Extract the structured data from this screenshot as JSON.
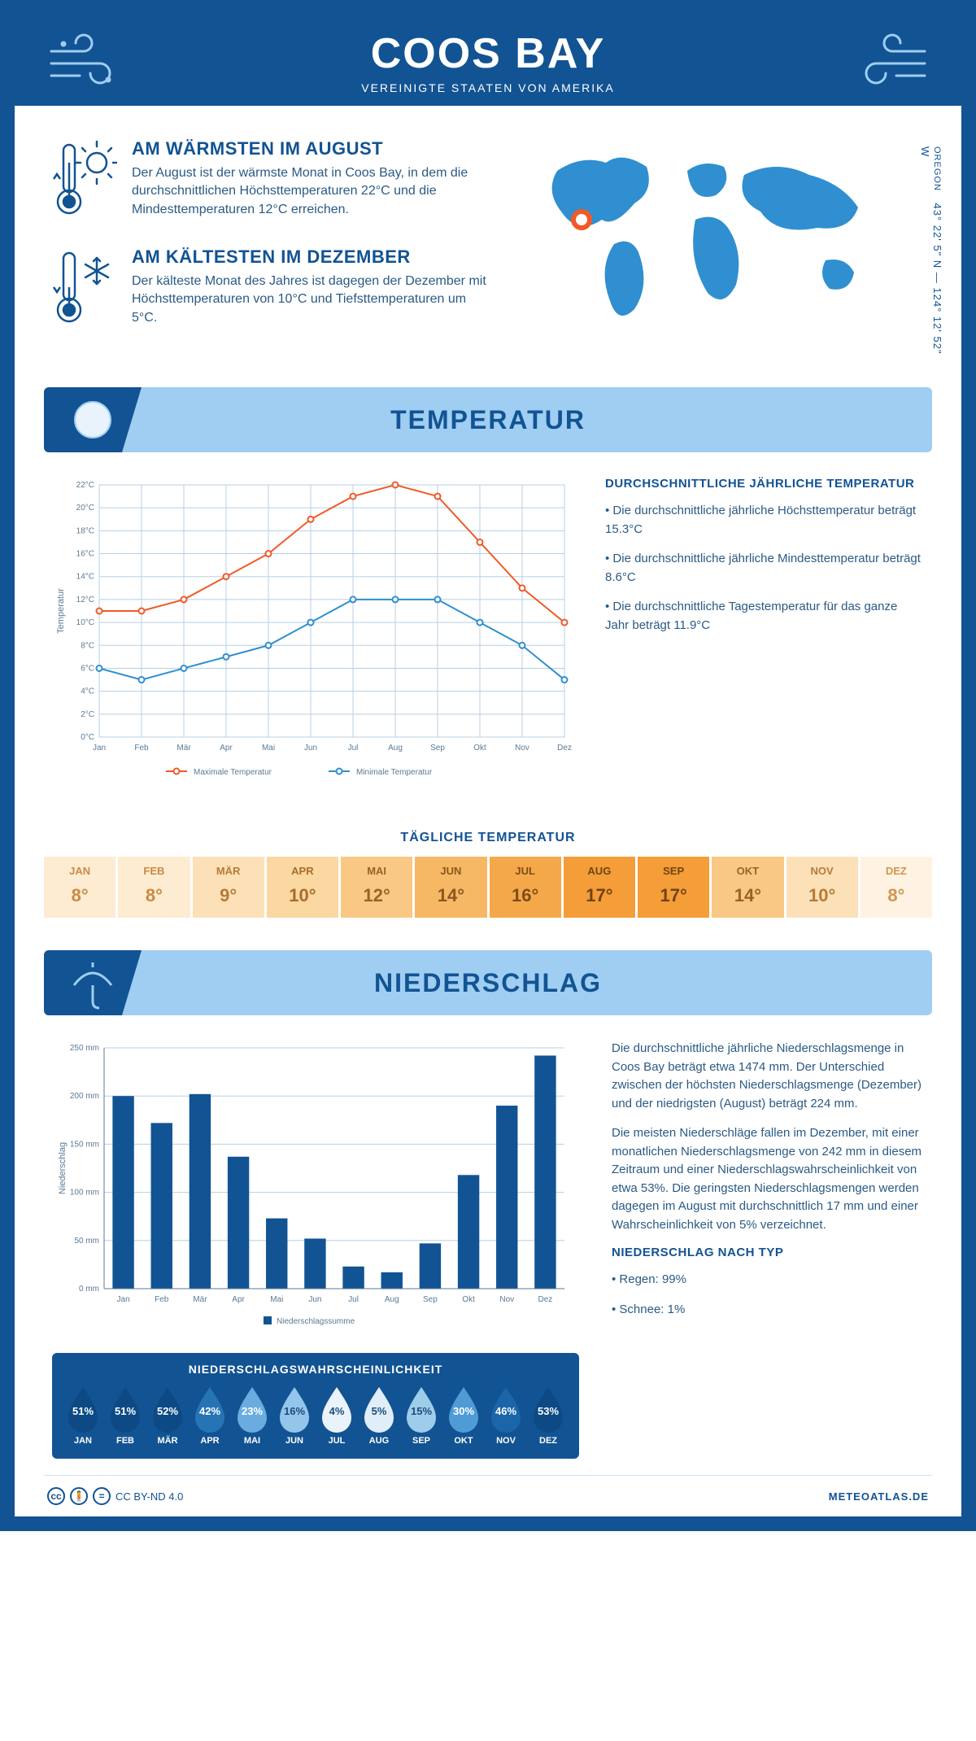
{
  "header": {
    "title": "COOS BAY",
    "subtitle": "VEREINIGTE STAATEN VON AMERIKA"
  },
  "coords": {
    "region": "OREGON",
    "text": "43° 22' 5\" N — 124° 12' 52\" W"
  },
  "warm": {
    "title": "AM WÄRMSTEN IM AUGUST",
    "text": "Der August ist der wärmste Monat in Coos Bay, in dem die durchschnittlichen Höchsttemperaturen 22°C und die Mindesttemperaturen 12°C erreichen."
  },
  "cold": {
    "title": "AM KÄLTESTEN IM DEZEMBER",
    "text": "Der kälteste Monat des Jahres ist dagegen der Dezember mit Höchsttemperaturen von 10°C und Tiefsttemperaturen um 5°C."
  },
  "months": [
    "Jan",
    "Feb",
    "Mär",
    "Apr",
    "Mai",
    "Jun",
    "Jul",
    "Aug",
    "Sep",
    "Okt",
    "Nov",
    "Dez"
  ],
  "months_upper": [
    "JAN",
    "FEB",
    "MÄR",
    "APR",
    "MAI",
    "JUN",
    "JUL",
    "AUG",
    "SEP",
    "OKT",
    "NOV",
    "DEZ"
  ],
  "temp_section": {
    "banner": "TEMPERATUR"
  },
  "temp_chart": {
    "type": "line",
    "ylabel": "Temperatur",
    "ylim": [
      0,
      22
    ],
    "ytick_step": 2,
    "yticks": [
      "0°C",
      "2°C",
      "4°C",
      "6°C",
      "8°C",
      "10°C",
      "12°C",
      "14°C",
      "16°C",
      "18°C",
      "20°C",
      "22°C"
    ],
    "max_series": {
      "label": "Maximale Temperatur",
      "color": "#f05a28",
      "values": [
        11,
        11,
        12,
        14,
        16,
        19,
        21,
        22,
        21,
        17,
        13,
        10
      ]
    },
    "min_series": {
      "label": "Minimale Temperatur",
      "color": "#2f8fd0",
      "values": [
        6,
        5,
        6,
        7,
        8,
        10,
        12,
        12,
        12,
        10,
        8,
        5
      ]
    },
    "grid_color": "#b8cfe3",
    "bg": "#ffffff",
    "marker": "circle",
    "line_width": 2
  },
  "annual": {
    "title": "DURCHSCHNITTLICHE JÄHRLICHE TEMPERATUR",
    "p1": "• Die durchschnittliche jährliche Höchsttemperatur beträgt 15.3°C",
    "p2": "• Die durchschnittliche jährliche Mindesttemperatur beträgt 8.6°C",
    "p3": "• Die durchschnittliche Tagestemperatur für das ganze Jahr beträgt 11.9°C"
  },
  "daily_title": "TÄGLICHE TEMPERATUR",
  "daily_temps": {
    "values": [
      "8°",
      "8°",
      "9°",
      "10°",
      "12°",
      "14°",
      "16°",
      "17°",
      "17°",
      "14°",
      "10°",
      "8°"
    ],
    "bg_colors": [
      "#fdecd2",
      "#fdecd2",
      "#fce1b8",
      "#fbd7a1",
      "#f9c884",
      "#f7b865",
      "#f5a84a",
      "#f49d39",
      "#f49d39",
      "#f9c884",
      "#fce1b8",
      "#fef3e2"
    ],
    "text_colors": [
      "#c98a42",
      "#c98a42",
      "#b87a35",
      "#a86d2c",
      "#9a6225",
      "#8b571e",
      "#7c4d18",
      "#704412",
      "#704412",
      "#9a6225",
      "#b87a35",
      "#d09550"
    ]
  },
  "precip_section": {
    "banner": "NIEDERSCHLAG"
  },
  "precip_chart": {
    "type": "bar",
    "ylabel": "Niederschlag",
    "ylim": [
      0,
      250
    ],
    "ytick_step": 50,
    "yticks": [
      "0 mm",
      "50 mm",
      "100 mm",
      "150 mm",
      "200 mm",
      "250 mm"
    ],
    "values": [
      200,
      172,
      202,
      137,
      73,
      52,
      23,
      17,
      47,
      118,
      190,
      242
    ],
    "bar_color": "#125393",
    "legend": "Niederschlagssumme",
    "grid_color": "#b8cfe3"
  },
  "precip_text": {
    "p1": "Die durchschnittliche jährliche Niederschlagsmenge in Coos Bay beträgt etwa 1474 mm. Der Unterschied zwischen der höchsten Niederschlagsmenge (Dezember) und der niedrigsten (August) beträgt 224 mm.",
    "p2": "Die meisten Niederschläge fallen im Dezember, mit einer monatlichen Niederschlagsmenge von 242 mm in diesem Zeitraum und einer Niederschlagswahrscheinlichkeit von etwa 53%. Die geringsten Niederschlagsmengen werden dagegen im August mit durchschnittlich 17 mm und einer Wahrscheinlichkeit von 5% verzeichnet.",
    "h": "NIEDERSCHLAG NACH TYP",
    "p3": "• Regen: 99%",
    "p4": "• Schnee: 1%"
  },
  "drop_box": {
    "title": "NIEDERSCHLAGSWAHRSCHEINLICHKEIT",
    "pcts": [
      "51%",
      "51%",
      "52%",
      "42%",
      "23%",
      "16%",
      "4%",
      "5%",
      "15%",
      "30%",
      "46%",
      "53%"
    ],
    "fills": [
      "#0d4a85",
      "#0d4a85",
      "#0d4a85",
      "#2774b5",
      "#6aace0",
      "#94c5ea",
      "#eaf3fb",
      "#e0eef9",
      "#9ecdeb",
      "#4f9bd5",
      "#1a66a8",
      "#0d4a85"
    ],
    "text_colors": [
      "#fff",
      "#fff",
      "#fff",
      "#fff",
      "#fff",
      "#1a4d7a",
      "#1a4d7a",
      "#1a4d7a",
      "#1a4d7a",
      "#fff",
      "#fff",
      "#fff"
    ]
  },
  "footer": {
    "license": "CC BY-ND 4.0",
    "brand": "METEOATLAS.DE"
  }
}
